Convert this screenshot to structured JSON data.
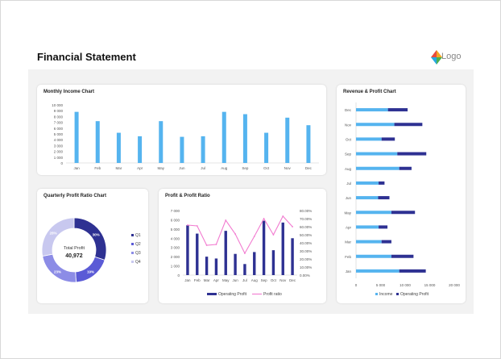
{
  "header": {
    "title": "Financial Statement",
    "logo_label": "Logo"
  },
  "colors": {
    "light_blue": "#55b4ef",
    "navy": "#2e3192",
    "pink": "#f27bd0",
    "donut_q1": "#2e3192",
    "donut_q2": "#5b5bd6",
    "donut_q3": "#8c8ce6",
    "donut_q4": "#c8c8ef"
  },
  "chart_data": [
    {
      "id": "monthly_income",
      "type": "bar",
      "title": "Monthly Income Chart",
      "categories": [
        "Jan",
        "Feb",
        "Mar",
        "Apr",
        "May",
        "Jun",
        "Jul",
        "Aug",
        "Sep",
        "Oct",
        "Nov",
        "Dec"
      ],
      "values": [
        8800,
        7200,
        5200,
        4600,
        7200,
        4500,
        4600,
        8800,
        8400,
        5200,
        7800,
        6500
      ],
      "ylim": [
        0,
        10000
      ],
      "yticks": [
        0,
        1000,
        2000,
        3000,
        4000,
        5000,
        6000,
        7000,
        8000,
        9000,
        10000
      ],
      "ytick_labels": [
        "0",
        "1 000",
        "2 000",
        "3 000",
        "4 000",
        "5 000",
        "6 000",
        "7 000",
        "8 000",
        "9 000",
        "10 000"
      ],
      "grid": false
    },
    {
      "id": "quarterly_profit_ratio",
      "type": "pie",
      "donut": true,
      "title": "Quarterly Profit Ratio Chart",
      "center_label": "Total Profit",
      "center_value": "40,972",
      "slices": [
        {
          "name": "Q1",
          "value": 30,
          "label": "30%"
        },
        {
          "name": "Q2",
          "value": 19,
          "label": "19%"
        },
        {
          "name": "Q3",
          "value": 23,
          "label": "23%"
        },
        {
          "name": "Q4",
          "value": 28,
          "label": "28%"
        }
      ],
      "legend": "right"
    },
    {
      "id": "profit_profit_ratio",
      "type": "bar",
      "title": "Profit & Profit Ratio",
      "categories": [
        "Jan",
        "Feb",
        "Mar",
        "Apr",
        "May",
        "Jun",
        "Jul",
        "Aug",
        "Sep",
        "Oct",
        "Nov",
        "Dec"
      ],
      "series": [
        {
          "name": "Operating Profit",
          "type": "bar",
          "axis": "left",
          "values": [
            5400,
            4500,
            2000,
            1800,
            4800,
            2300,
            1200,
            2500,
            5900,
            2700,
            5700,
            4000
          ]
        },
        {
          "name": "Profit ratio",
          "type": "line",
          "axis": "right",
          "values": [
            62,
            61,
            37,
            38,
            68,
            51,
            27,
            48,
            70,
            50,
            73,
            60
          ]
        }
      ],
      "ylim": [
        0,
        7000
      ],
      "yticks": [
        0,
        1000,
        2000,
        3000,
        4000,
        5000,
        6000,
        7000
      ],
      "ytick_labels": [
        "0",
        "1 000",
        "2 000",
        "3 000",
        "4 000",
        "5 000",
        "6 000",
        "7 000"
      ],
      "y2lim": [
        0,
        80
      ],
      "y2ticks": [
        0,
        10,
        20,
        30,
        40,
        50,
        60,
        70,
        80
      ],
      "y2tick_labels": [
        "0.00%",
        "10.00%",
        "20.00%",
        "30.00%",
        "40.00%",
        "50.00%",
        "60.00%",
        "70.00%",
        "80.00%"
      ],
      "legend": "bottom"
    },
    {
      "id": "revenue_profit",
      "type": "bar",
      "orientation": "horizontal",
      "stacked": true,
      "title": "Revenue & Profit Chart",
      "categories": [
        "Dec",
        "Nov",
        "Oct",
        "Sep",
        "Aug",
        "Jul",
        "Jun",
        "May",
        "Apr",
        "Mar",
        "Feb",
        "Jan"
      ],
      "series": [
        {
          "name": "Income",
          "values": [
            6500,
            7800,
            5200,
            8400,
            8800,
            4600,
            4500,
            7200,
            4600,
            5200,
            7200,
            8800
          ]
        },
        {
          "name": "Operating Profit",
          "values": [
            4000,
            5700,
            2700,
            5900,
            2500,
            1200,
            2300,
            4800,
            1800,
            2000,
            4500,
            5400
          ]
        }
      ],
      "xlim": [
        0,
        20000
      ],
      "xticks": [
        0,
        5000,
        10000,
        15000,
        20000
      ],
      "xtick_labels": [
        "0",
        "5 000",
        "10 000",
        "15 000",
        "20 000"
      ],
      "legend": "bottom"
    }
  ]
}
